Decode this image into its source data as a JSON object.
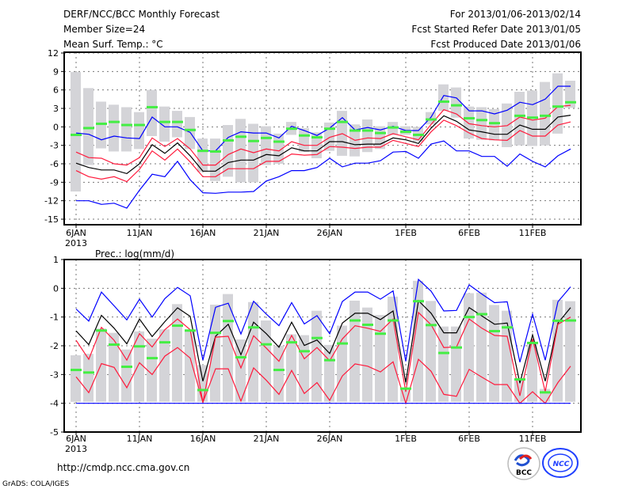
{
  "header": {
    "title": "DERF/NCC/BCC Monthly Forecast",
    "member_size": "Member Size=24",
    "variable": "Mean Surf. Temp.: °C",
    "period": "For 2013/01/06-2013/02/14",
    "fcst_start": "Fcst Started Refer Date 2013/01/05",
    "fcst_produced": "Fcst Produced Date 2013/01/06"
  },
  "footer": {
    "url": "http://cmdp.ncc.cma.gov.cn",
    "credit": "GrADS: COLA/IGES",
    "logo_bcc": "BCC",
    "logo_ncc": "NCC"
  },
  "colors": {
    "max_min": "#0000ff",
    "upper_lower": "#ff1a3c",
    "mean": "#000000",
    "obs": "#44ee44",
    "spread": "#d4d4d8"
  },
  "chart_data": [
    {
      "type": "line",
      "title": "Mean Surf. Temp.: °C",
      "ylim": [
        -15,
        12
      ],
      "yticks": [
        "12",
        "9",
        "6",
        "3",
        "0",
        "-3",
        "-6",
        "-9",
        "-12",
        "-15"
      ],
      "xtick_labels": [
        {
          "day": 0,
          "label": "6JAN"
        },
        {
          "day": 5,
          "label": "11JAN"
        },
        {
          "day": 10,
          "label": "16JAN"
        },
        {
          "day": 15,
          "label": "21JAN"
        },
        {
          "day": 20,
          "label": "26JAN"
        },
        {
          "day": 26,
          "label": "1FEB"
        },
        {
          "day": 31,
          "label": "6FEB"
        },
        {
          "day": 36,
          "label": "11FEB"
        }
      ],
      "year_label": "2013",
      "grid": true,
      "bar_top": [
        8.9,
        6.3,
        4.1,
        3.6,
        3.2,
        2.4,
        6.0,
        3.3,
        2.6,
        1.6,
        -1.9,
        -1.9,
        0.3,
        1.3,
        0.5,
        0.1,
        -1.1,
        0.8,
        -0.2,
        -0.9,
        0.7,
        2.6,
        0.4,
        1.2,
        0.1,
        0.8,
        0.1,
        0,
        2.4,
        6.9,
        6.4,
        3.3,
        3.2,
        2.9,
        3.8,
        5.7,
        5.9,
        7.3,
        8.7,
        7.5
      ],
      "bar_bottom": [
        -10.5,
        -6.2,
        -3.5,
        -4.0,
        -4.0,
        -3.6,
        -1.5,
        -2.4,
        -1.7,
        -3.6,
        -7.3,
        -8.8,
        -8.1,
        -9.0,
        -9.0,
        -6.2,
        -6.0,
        -1.3,
        -4.1,
        -5.1,
        -3.9,
        -4.7,
        -4.8,
        -4.1,
        -3.6,
        -1.3,
        -1.3,
        -2.4,
        0.4,
        2.6,
        1.5,
        -1.9,
        -2.1,
        -2.2,
        -3.3,
        -3.0,
        -3.1,
        -3.0,
        -1.1,
        3.1
      ],
      "series": [
        {
          "name": "max",
          "color": "max_min",
          "values": [
            -1.0,
            -1.2,
            -2.1,
            -1.5,
            -1.8,
            -1.9,
            1.6,
            0,
            0,
            -0.9,
            -3.9,
            -3.9,
            -1.7,
            -0.8,
            -1.0,
            -1.0,
            -1.8,
            0.1,
            -0.6,
            -1.4,
            -0.2,
            1.5,
            -0.5,
            -0.1,
            -0.5,
            0.1,
            -0.6,
            -0.6,
            1.6,
            5.1,
            4.7,
            2.6,
            2.6,
            2.1,
            2.7,
            4.0,
            3.6,
            4.5,
            6.6,
            6.6
          ]
        },
        {
          "name": "upper",
          "color": "upper_lower",
          "values": [
            -4.1,
            -5.0,
            -5.1,
            -6.0,
            -6.2,
            -5.0,
            -1.8,
            -3.2,
            -1.9,
            -3.6,
            -6.2,
            -6.2,
            -4.5,
            -3.6,
            -4.2,
            -3.6,
            -3.9,
            -2.4,
            -3.0,
            -3.0,
            -1.7,
            -1.1,
            -2.2,
            -1.8,
            -1.9,
            -1.1,
            -1.6,
            -2.1,
            0.4,
            2.8,
            2.1,
            0.5,
            0.2,
            0,
            0.2,
            1.6,
            1.1,
            1.4,
            3.3,
            3.5
          ]
        },
        {
          "name": "mean",
          "color": "mean",
          "values": [
            -5.9,
            -6.6,
            -7.0,
            -7.0,
            -7.6,
            -6.0,
            -2.9,
            -4.3,
            -2.6,
            -4.7,
            -7.2,
            -7.2,
            -5.8,
            -5.4,
            -5.4,
            -4.5,
            -4.7,
            -3.4,
            -3.9,
            -3.9,
            -2.4,
            -2.4,
            -2.9,
            -2.8,
            -2.8,
            -1.8,
            -2.1,
            -2.7,
            -0.2,
            1.8,
            0.9,
            -0.5,
            -0.8,
            -1.2,
            -1.2,
            0.3,
            -0.4,
            -0.4,
            1.6,
            1.9
          ]
        },
        {
          "name": "lower",
          "color": "upper_lower",
          "values": [
            -7.1,
            -8.1,
            -8.5,
            -8.1,
            -8.9,
            -6.9,
            -3.9,
            -5.4,
            -3.6,
            -5.7,
            -8.1,
            -8.1,
            -6.8,
            -6.8,
            -6.8,
            -5.6,
            -5.6,
            -4.4,
            -4.6,
            -4.5,
            -3.2,
            -3.3,
            -3.5,
            -3.3,
            -3.3,
            -2.2,
            -2.7,
            -3.2,
            -0.8,
            1.1,
            0.2,
            -1.0,
            -1.9,
            -2.1,
            -2.2,
            -0.6,
            -1.5,
            -1.5,
            0.3,
            0.8
          ]
        },
        {
          "name": "min",
          "color": "max_min",
          "values": [
            -12,
            -12,
            -12.6,
            -12.4,
            -13.2,
            -10.3,
            -7.7,
            -8.1,
            -5.6,
            -8.6,
            -10.7,
            -10.8,
            -10.6,
            -10.6,
            -10.5,
            -8.8,
            -8.1,
            -7.1,
            -7.1,
            -6.6,
            -5.1,
            -6.5,
            -5.9,
            -5.9,
            -5.5,
            -4.1,
            -4.0,
            -5.1,
            -2.8,
            -2.3,
            -3.9,
            -3.9,
            -4.8,
            -4.8,
            -6.4,
            -4.4,
            -5.6,
            -6.5,
            -4.7,
            -3.6
          ]
        }
      ],
      "obs": [
        -1.3,
        -0.2,
        0.5,
        0.8,
        0.3,
        0.3,
        3.2,
        0.8,
        0.8,
        -0.5,
        -3.9,
        -4.0,
        -2.2,
        -1.6,
        -2.3,
        -1.8,
        -2.4,
        -0.3,
        -1.4,
        -1.7,
        -0.3,
        0.8,
        -0.6,
        -0.6,
        -1.0,
        -0.1,
        -0.8,
        -1.3,
        1.2,
        4.1,
        3.5,
        1.4,
        1.1,
        0.6,
        null,
        1.8,
        1.5,
        1.8,
        3.3,
        4.0
      ]
    },
    {
      "type": "line",
      "title": "Prec.: log(mm/d)",
      "ylim": [
        -5,
        1
      ],
      "yticks": [
        "1",
        "0",
        "-1",
        "-2",
        "-3",
        "-4",
        "-5"
      ],
      "xtick_labels": [
        {
          "day": 0,
          "label": "6JAN"
        },
        {
          "day": 5,
          "label": "11JAN"
        },
        {
          "day": 10,
          "label": "16JAN"
        },
        {
          "day": 15,
          "label": "21JAN"
        },
        {
          "day": 20,
          "label": "26JAN"
        },
        {
          "day": 26,
          "label": "1FEB"
        },
        {
          "day": 31,
          "label": "6FEB"
        },
        {
          "day": 36,
          "label": "11FEB"
        }
      ],
      "year_label": "2013",
      "grid": true,
      "bar_top": [
        -2.33,
        -2.28,
        -1.4,
        -1.55,
        -2.13,
        -1.5,
        -1.75,
        -1.43,
        -0.55,
        -1.45,
        -2.67,
        -0.57,
        -0.2,
        -1.78,
        -0.48,
        -1.12,
        -2.0,
        -1.6,
        -1.63,
        -0.78,
        -1.97,
        -1.3,
        -0.43,
        -0.67,
        -0.93,
        -0.29,
        -3.5,
        0.26,
        -0.44,
        -1.33,
        -1.33,
        -0.17,
        -0.15,
        -0.58,
        -0.78,
        -3.2,
        -1.9,
        -3.5,
        -0.4,
        -0.45
      ],
      "bar_bottom": -3.95,
      "series": [
        {
          "name": "max",
          "color": "max_min",
          "values": [
            -0.72,
            -1.14,
            -0.13,
            -0.61,
            -1.1,
            -0.38,
            -1.0,
            -0.36,
            0.03,
            -0.26,
            -2.5,
            -0.66,
            -0.52,
            -1.59,
            -0.45,
            -0.9,
            -1.3,
            -0.5,
            -1.24,
            -0.95,
            -1.58,
            -0.46,
            -0.13,
            -0.13,
            -0.38,
            -0.09,
            -2.54,
            0.31,
            -0.1,
            -0.79,
            -0.77,
            0.12,
            -0.2,
            -0.5,
            -0.47,
            -2.57,
            -0.9,
            -2.5,
            -0.47,
            0.05
          ]
        },
        {
          "name": "mean",
          "color": "mean",
          "values": [
            -1.48,
            -1.96,
            -0.94,
            -1.39,
            -1.93,
            -1.07,
            -1.68,
            -1.16,
            -0.68,
            -0.98,
            -3.23,
            -1.67,
            -1.25,
            -2.31,
            -1.18,
            -1.58,
            -2.05,
            -1.18,
            -1.99,
            -1.8,
            -2.27,
            -1.21,
            -0.87,
            -0.87,
            -1.09,
            -0.79,
            -3.28,
            -0.43,
            -0.87,
            -1.55,
            -1.55,
            -0.67,
            -0.96,
            -1.25,
            -1.21,
            -3.3,
            -1.62,
            -3.23,
            -1.21,
            -0.67
          ]
        },
        {
          "name": "upper",
          "color": "upper_lower",
          "values": [
            -1.81,
            -2.47,
            -1.36,
            -1.81,
            -2.5,
            -1.58,
            -2.04,
            -1.44,
            -1.07,
            -1.44,
            -3.97,
            -1.7,
            -1.67,
            -2.77,
            -1.65,
            -2.08,
            -2.54,
            -1.64,
            -2.45,
            -2.06,
            -2.52,
            -1.76,
            -1.3,
            -1.39,
            -1.5,
            -1.07,
            -3.6,
            -0.84,
            -1.27,
            -2.06,
            -2.04,
            -1.07,
            -1.39,
            -1.64,
            -1.67,
            -3.74,
            -1.76,
            -3.6,
            -1.25,
            -1.0
          ]
        },
        {
          "name": "lower",
          "color": "upper_lower",
          "values": [
            -3.08,
            -3.63,
            -2.62,
            -2.75,
            -3.46,
            -2.59,
            -3.0,
            -2.36,
            -2.06,
            -2.43,
            -3.97,
            -2.8,
            -2.8,
            -3.92,
            -2.77,
            -3.2,
            -3.69,
            -2.86,
            -3.66,
            -3.28,
            -3.9,
            -3.05,
            -2.63,
            -2.71,
            -2.91,
            -2.56,
            -4.0,
            -2.47,
            -2.89,
            -3.69,
            -3.76,
            -2.82,
            -3.09,
            -3.35,
            -3.35,
            -4.0,
            -3.6,
            -4.0,
            -3.28,
            -2.71
          ]
        },
        {
          "name": "min",
          "color": "max_min",
          "values": [
            -4,
            -4,
            -4,
            -4,
            -4,
            -4,
            -4,
            -4,
            -4,
            -4,
            -4,
            -4,
            -4,
            -4,
            -4,
            -4,
            -4,
            -4,
            -4,
            -4,
            -4,
            -4,
            -4,
            -4,
            -4,
            -4,
            -4,
            -4,
            -4,
            -4,
            -4,
            -4,
            -4,
            -4,
            -4,
            -4,
            -4,
            -4,
            -4,
            -4
          ]
        }
      ],
      "obs": [
        -2.84,
        -2.93,
        -1.47,
        -1.96,
        -2.73,
        -2.02,
        -2.43,
        -1.88,
        -1.3,
        -1.47,
        -3.54,
        -1.55,
        -1.14,
        -2.4,
        -1.36,
        -1.95,
        -2.84,
        -1.88,
        -2.19,
        -1.73,
        -2.5,
        -1.92,
        -1.12,
        -1.27,
        -1.58,
        -1.12,
        -3.49,
        -0.45,
        -1.28,
        -2.25,
        -2.06,
        -1.0,
        -0.9,
        -1.49,
        -1.36,
        -3.17,
        -1.9,
        -3.62,
        -1.13,
        -1.12
      ]
    }
  ]
}
